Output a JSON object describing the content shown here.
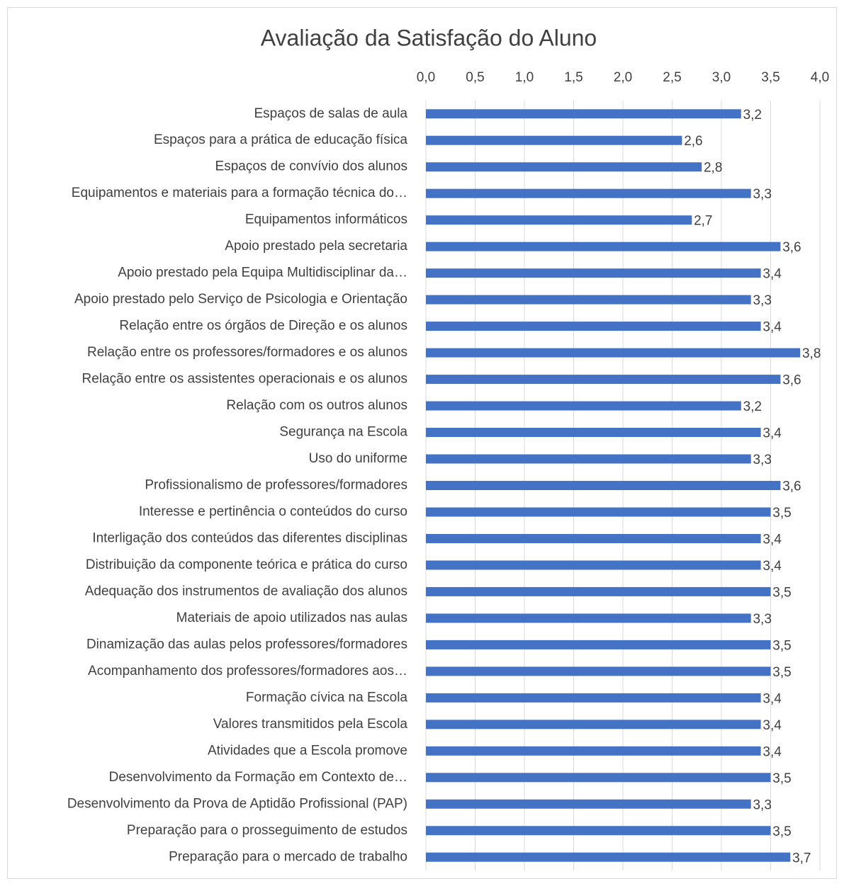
{
  "chart_data": {
    "type": "bar",
    "orientation": "horizontal",
    "title": "Avaliação da Satisfação do Aluno",
    "categories": [
      "Espaços de salas de aula",
      "Espaços para a prática de educação física",
      "Espaços de convívio dos alunos",
      "Equipamentos e materiais para a formação técnica do…",
      "Equipamentos informáticos",
      "Apoio prestado pela secretaria",
      "Apoio prestado pela Equipa Multidisciplinar da…",
      "Apoio prestado pelo Serviço de Psicologia e Orientação",
      "Relação entre os órgãos de Direção e os alunos",
      "Relação entre os professores/formadores e os alunos",
      "Relação entre os assistentes operacionais e os alunos",
      "Relação com os outros alunos",
      "Segurança na Escola",
      "Uso do uniforme",
      "Profissionalismo de professores/formadores",
      "Interesse e pertinência o conteúdos do curso",
      "Interligação dos conteúdos das diferentes disciplinas",
      "Distribuição da componente teórica e prática do curso",
      "Adequação dos instrumentos de avaliação dos alunos",
      "Materiais de apoio utilizados nas aulas",
      "Dinamização das aulas pelos professores/formadores",
      "Acompanhamento dos professores/formadores aos…",
      "Formação cívica na Escola",
      "Valores transmitidos pela Escola",
      "Atividades que a Escola promove",
      "Desenvolvimento da Formação em Contexto de…",
      "Desenvolvimento da Prova de Aptidão Profissional (PAP)",
      "Preparação para o prosseguimento de estudos",
      "Preparação para o mercado de trabalho"
    ],
    "values": [
      3.2,
      2.6,
      2.8,
      3.3,
      2.7,
      3.6,
      3.4,
      3.3,
      3.4,
      3.8,
      3.6,
      3.2,
      3.4,
      3.3,
      3.6,
      3.5,
      3.4,
      3.4,
      3.5,
      3.3,
      3.5,
      3.5,
      3.4,
      3.4,
      3.4,
      3.5,
      3.3,
      3.5,
      3.7
    ],
    "value_labels": [
      "3,2",
      "2,6",
      "2,8",
      "3,3",
      "2,7",
      "3,6",
      "3,4",
      "3,3",
      "3,4",
      "3,8",
      "3,6",
      "3,2",
      "3,4",
      "3,3",
      "3,6",
      "3,5",
      "3,4",
      "3,4",
      "3,5",
      "3,3",
      "3,5",
      "3,5",
      "3,4",
      "3,4",
      "3,4",
      "3,5",
      "3,3",
      "3,5",
      "3,7"
    ],
    "color": "#4472c4",
    "xlim": [
      0,
      4
    ],
    "xticks": [
      {
        "value": 0,
        "label": "0,0"
      },
      {
        "value": 0.5,
        "label": "0,5"
      },
      {
        "value": 1,
        "label": "1,0"
      },
      {
        "value": 1.5,
        "label": "1,5"
      },
      {
        "value": 2,
        "label": "2,0"
      },
      {
        "value": 2.5,
        "label": "2,5"
      },
      {
        "value": 3,
        "label": "3,0"
      },
      {
        "value": 3.5,
        "label": "3,5"
      },
      {
        "value": 4,
        "label": "4,0"
      }
    ],
    "grid": true
  }
}
